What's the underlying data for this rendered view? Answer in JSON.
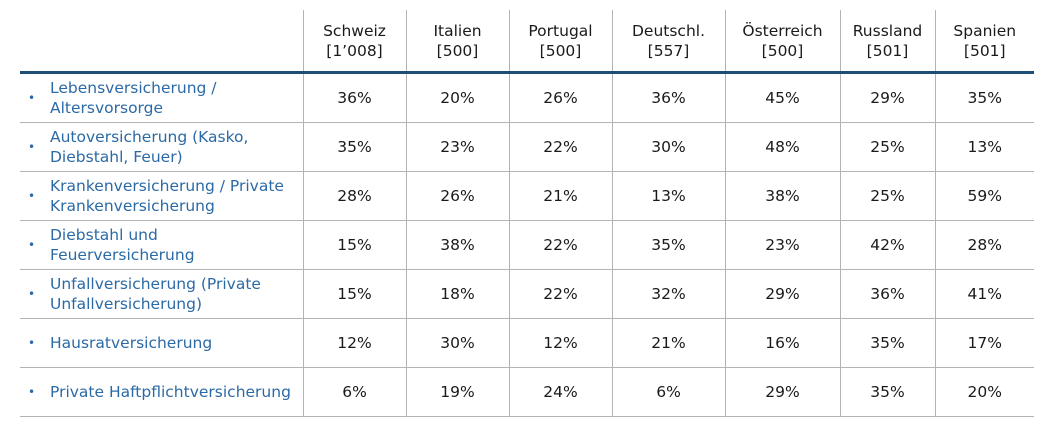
{
  "chart_data": {
    "type": "table",
    "columns": [
      {
        "name": "Schweiz",
        "n": "[1’008]"
      },
      {
        "name": "Italien",
        "n": "[500]"
      },
      {
        "name": "Portugal",
        "n": "[500]"
      },
      {
        "name": "Deutschl.",
        "n": "[557]"
      },
      {
        "name": "Österreich",
        "n": "[500]"
      },
      {
        "name": "Russland",
        "n": "[501]"
      },
      {
        "name": "Spanien",
        "n": "[501]"
      }
    ],
    "rows": [
      {
        "label": "Lebensversicherung / Altersvorsorge",
        "values": [
          "36%",
          "20%",
          "26%",
          "36%",
          "45%",
          "29%",
          "35%"
        ]
      },
      {
        "label": "Autoversicherung (Kasko, Diebstahl, Feuer)",
        "values": [
          "35%",
          "23%",
          "22%",
          "30%",
          "48%",
          "25%",
          "13%"
        ]
      },
      {
        "label": "Krankenversicherung / Private Krankenversicherung",
        "values": [
          "28%",
          "26%",
          "21%",
          "13%",
          "38%",
          "25%",
          "59%"
        ]
      },
      {
        "label": "Diebstahl und Feuerversicherung",
        "values": [
          "15%",
          "38%",
          "22%",
          "35%",
          "23%",
          "42%",
          "28%"
        ]
      },
      {
        "label": "Unfallversicherung (Private Unfallversicherung)",
        "values": [
          "15%",
          "18%",
          "22%",
          "32%",
          "29%",
          "36%",
          "41%"
        ]
      },
      {
        "label": "Hausratversicherung",
        "values": [
          "12%",
          "30%",
          "12%",
          "21%",
          "16%",
          "35%",
          "17%"
        ]
      },
      {
        "label": "Private Haftpflichtversicherung",
        "values": [
          "6%",
          "19%",
          "24%",
          "6%",
          "29%",
          "35%",
          "20%"
        ]
      }
    ],
    "colors": {
      "label_text": "#2b6aa6",
      "header_rule": "#1f4e79",
      "grid": "#b3b3b3"
    },
    "bullet_icon": "bullet-point-icon"
  }
}
